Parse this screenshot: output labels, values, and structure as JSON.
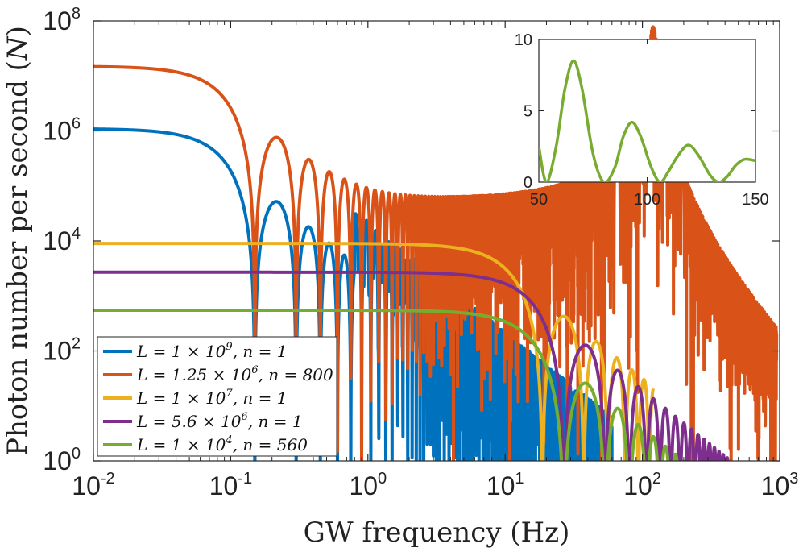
{
  "chart_data": [
    {
      "type": "line",
      "xlabel": "GW frequency (Hz)",
      "ylabel": "Photon number per second (",
      "ylabel_symbol": "N",
      "ylabel_close": ")",
      "xscale": "log",
      "yscale": "log",
      "xlim": [
        0.01,
        1000
      ],
      "ylim": [
        1,
        100000000
      ],
      "x_ticks": [
        {
          "base": "10",
          "exp": "-2",
          "value": 0.01
        },
        {
          "base": "10",
          "exp": "-1",
          "value": 0.1
        },
        {
          "base": "10",
          "exp": "0",
          "value": 1
        },
        {
          "base": "10",
          "exp": "1",
          "value": 10
        },
        {
          "base": "10",
          "exp": "2",
          "value": 100
        },
        {
          "base": "10",
          "exp": "3",
          "value": 1000
        }
      ],
      "y_ticks": [
        {
          "base": "10",
          "exp": "0",
          "value": 1
        },
        {
          "base": "10",
          "exp": "2",
          "value": 100
        },
        {
          "base": "10",
          "exp": "4",
          "value": 10000
        },
        {
          "base": "10",
          "exp": "6",
          "value": 1000000
        },
        {
          "base": "10",
          "exp": "8",
          "value": 100000000
        }
      ],
      "grid": false,
      "legend_position": "bottom-left",
      "series": [
        {
          "legend": {
            "lhs": "L = 1 × 10",
            "sup": "9",
            "rest": ", n = 1"
          },
          "color": "#0072BD",
          "plateau": 1100000,
          "fz": 0.15,
          "pattern": "sinc",
          "points": [
            [
              0.01,
              1100000
            ],
            [
              0.05,
              1000000
            ],
            [
              0.1,
              500000
            ],
            [
              0.15,
              1
            ],
            [
              0.21,
              50000
            ],
            [
              0.3,
              1
            ],
            [
              0.36,
              18000
            ],
            [
              0.45,
              1
            ],
            [
              0.52,
              8000
            ],
            [
              0.7,
              1
            ],
            [
              1.0,
              800
            ],
            [
              2.0,
              200
            ],
            [
              5.0,
              40
            ],
            [
              10.0,
              10
            ],
            [
              15.0,
              1
            ]
          ]
        },
        {
          "legend": {
            "lhs": "L = 1.25 × 10",
            "sup": "6",
            "rest": ", n = 800"
          },
          "color": "#D95319",
          "plateau": 15000000,
          "fz": 0.15,
          "pattern": "resonant",
          "points": [
            [
              0.01,
              15000000
            ],
            [
              0.05,
              13000000
            ],
            [
              0.1,
              5000000
            ],
            [
              0.15,
              1
            ],
            [
              0.21,
              800000
            ],
            [
              0.3,
              1
            ],
            [
              0.36,
              250000
            ],
            [
              1.0,
              5000
            ],
            [
              10.0,
              300
            ],
            [
              20.0,
              20
            ],
            [
              50.0,
              10
            ],
            [
              120.0,
              80000000
            ],
            [
              200.0,
              60
            ],
            [
              250.0,
              250
            ],
            [
              600.0,
              60
            ],
            [
              800.0,
              60
            ]
          ]
        },
        {
          "legend": {
            "lhs": "L = 1 × 10",
            "sup": "7",
            "rest": ", n = 1"
          },
          "color": "#EDB120",
          "plateau": 9000,
          "fz": 18.7,
          "pattern": "sinc",
          "points": [
            [
              0.01,
              9000
            ],
            [
              1.0,
              9000
            ],
            [
              5.0,
              7000
            ],
            [
              10.0,
              2000
            ],
            [
              15.0,
              100
            ],
            [
              18.7,
              1
            ],
            [
              22.0,
              400
            ],
            [
              28.0,
              1
            ],
            [
              35.0,
              100
            ],
            [
              45.0,
              1
            ],
            [
              50.0,
              60
            ],
            [
              60.0,
              1
            ]
          ]
        },
        {
          "legend": {
            "lhs": "L = 5.6 × 10",
            "sup": "6",
            "rest": ", n = 1"
          },
          "color": "#7E2F8E",
          "plateau": 2700,
          "fz": 26.8,
          "pattern": "sinc",
          "points": [
            [
              0.01,
              2700
            ],
            [
              2.0,
              2700
            ],
            [
              10.0,
              1500
            ],
            [
              20.0,
              200
            ],
            [
              26.8,
              1
            ],
            [
              36.0,
              110
            ],
            [
              54.0,
              1
            ],
            [
              66.0,
              40
            ],
            [
              100.0,
              10
            ],
            [
              200.0,
              2
            ],
            [
              400.0,
              1
            ]
          ]
        },
        {
          "legend": {
            "lhs": "L = 1 × 10",
            "sup": "4",
            "rest": ", n = 560"
          },
          "color": "#77AC30",
          "plateau": 550,
          "fz": 26.8,
          "pattern": "sinc",
          "points": [
            [
              0.01,
              550
            ],
            [
              1.0,
              550
            ],
            [
              10.0,
              300
            ],
            [
              20.0,
              40
            ],
            [
              26.8,
              1
            ],
            [
              38.0,
              60
            ],
            [
              54.0,
              1
            ],
            [
              70.0,
              20
            ],
            [
              100.0,
              5
            ],
            [
              200.0,
              1
            ]
          ]
        }
      ]
    },
    {
      "type": "line",
      "inset": true,
      "position": "top-right",
      "xlim": [
        50,
        150
      ],
      "ylim": [
        0,
        10
      ],
      "x_ticks": [
        50,
        100,
        150
      ],
      "y_ticks": [
        0,
        5,
        10
      ],
      "series": [
        {
          "color": "#77AC30",
          "points": [
            [
              50,
              2.5
            ],
            [
              53.5,
              0
            ],
            [
              58,
              2.5
            ],
            [
              62,
              6.5
            ],
            [
              66,
              8.5
            ],
            [
              70,
              6.5
            ],
            [
              75,
              2
            ],
            [
              80,
              0
            ],
            [
              85,
              1
            ],
            [
              89,
              3.2
            ],
            [
              93,
              4.2
            ],
            [
              97,
              3.2
            ],
            [
              102,
              1
            ],
            [
              106,
              0
            ],
            [
              110,
              0.8
            ],
            [
              114,
              1.8
            ],
            [
              119,
              2.6
            ],
            [
              124,
              1.8
            ],
            [
              129,
              0.5
            ],
            [
              133,
              0
            ],
            [
              137,
              0.4
            ],
            [
              141,
              1.2
            ],
            [
              145,
              1.6
            ],
            [
              150,
              1.5
            ]
          ]
        }
      ]
    }
  ]
}
